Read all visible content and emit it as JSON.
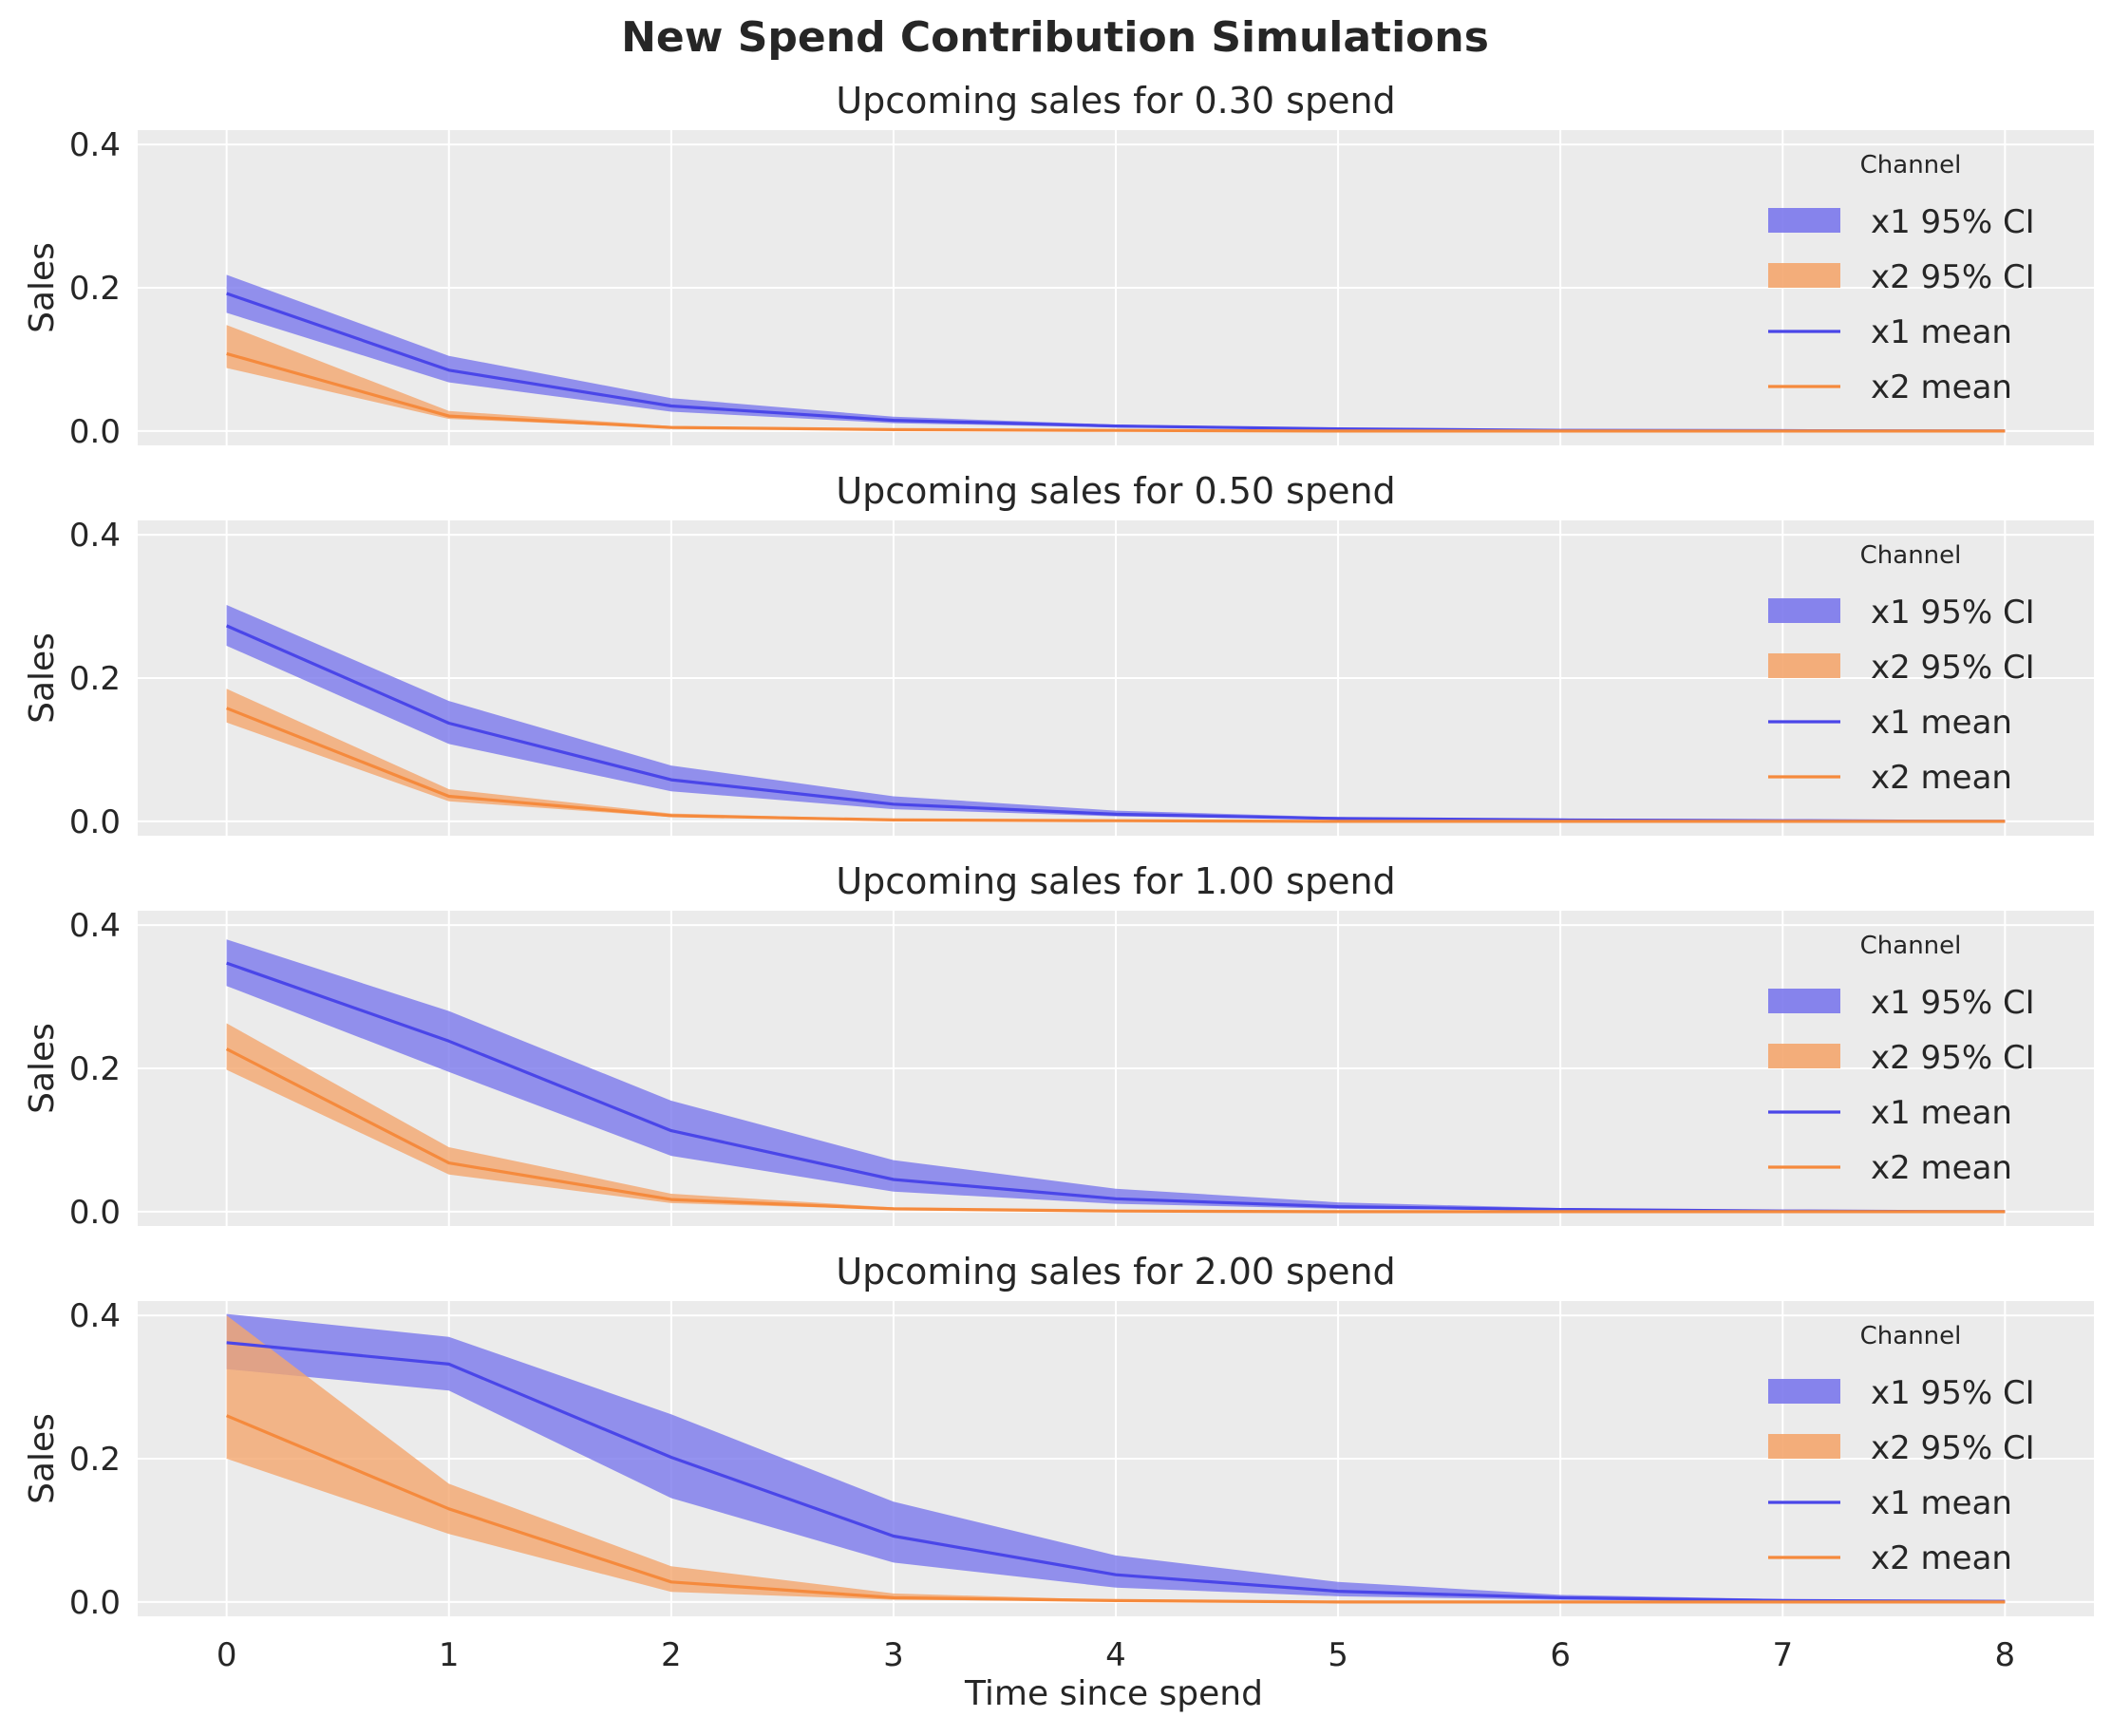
{
  "figure": {
    "title": "New Spend Contribution Simulations",
    "xlabel": "Time since spend"
  },
  "colors": {
    "x1": "#4a46e8",
    "x1_band": "#7b78ec",
    "x2": "#f58a3d",
    "x2_band": "#f4a66e",
    "panel_bg": "#ebebeb",
    "grid": "#ffffff"
  },
  "chart_data": [
    {
      "type": "line",
      "title": "Upcoming sales for 0.30 spend",
      "xlabel": "",
      "ylabel": "Sales",
      "x": [
        0,
        1,
        2,
        3,
        4,
        5,
        6,
        7,
        8
      ],
      "xticks": [
        "0",
        "1",
        "2",
        "3",
        "4",
        "5",
        "6",
        "7",
        "8"
      ],
      "yticks": [
        "0.0",
        "0.2",
        "0.4"
      ],
      "ylim": [
        -0.02,
        0.42
      ],
      "xlim": [
        -0.4,
        8.4
      ],
      "grid": true,
      "legend": {
        "title": "Channel",
        "position": "right",
        "entries": [
          "x1 95% CI",
          "x2 95% CI",
          "x1 mean",
          "x2 mean"
        ]
      },
      "series": [
        {
          "name": "x1 mean",
          "kind": "line",
          "values": [
            0.192,
            0.085,
            0.035,
            0.015,
            0.007,
            0.003,
            0.001,
            0.0005,
            0.0
          ]
        },
        {
          "name": "x1 95% CI",
          "kind": "band",
          "lower": [
            0.165,
            0.068,
            0.027,
            0.011,
            0.005,
            0.002,
            0.001,
            0.0,
            0.0
          ],
          "upper": [
            0.218,
            0.105,
            0.046,
            0.02,
            0.009,
            0.004,
            0.002,
            0.001,
            0.0
          ]
        },
        {
          "name": "x2 mean",
          "kind": "line",
          "values": [
            0.108,
            0.021,
            0.005,
            0.002,
            0.001,
            0.0,
            0.0,
            0.0,
            0.0
          ]
        },
        {
          "name": "x2 95% CI",
          "kind": "band",
          "lower": [
            0.088,
            0.017,
            0.004,
            0.001,
            0.0,
            0.0,
            0.0,
            0.0,
            0.0
          ],
          "upper": [
            0.148,
            0.028,
            0.007,
            0.003,
            0.001,
            0.0,
            0.0,
            0.0,
            0.0
          ]
        }
      ]
    },
    {
      "type": "line",
      "title": "Upcoming sales for 0.50 spend",
      "xlabel": "",
      "ylabel": "Sales",
      "x": [
        0,
        1,
        2,
        3,
        4,
        5,
        6,
        7,
        8
      ],
      "xticks": [
        "0",
        "1",
        "2",
        "3",
        "4",
        "5",
        "6",
        "7",
        "8"
      ],
      "yticks": [
        "0.0",
        "0.2",
        "0.4"
      ],
      "ylim": [
        -0.02,
        0.42
      ],
      "xlim": [
        -0.4,
        8.4
      ],
      "grid": true,
      "legend": {
        "title": "Channel",
        "position": "right",
        "entries": [
          "x1 95% CI",
          "x2 95% CI",
          "x1 mean",
          "x2 mean"
        ]
      },
      "series": [
        {
          "name": "x1 mean",
          "kind": "line",
          "values": [
            0.273,
            0.137,
            0.058,
            0.024,
            0.01,
            0.004,
            0.002,
            0.001,
            0.0
          ]
        },
        {
          "name": "x1 95% CI",
          "kind": "band",
          "lower": [
            0.245,
            0.108,
            0.042,
            0.017,
            0.007,
            0.003,
            0.001,
            0.0,
            0.0
          ],
          "upper": [
            0.302,
            0.168,
            0.078,
            0.035,
            0.015,
            0.006,
            0.002,
            0.001,
            0.0
          ]
        },
        {
          "name": "x2 mean",
          "kind": "line",
          "values": [
            0.158,
            0.035,
            0.008,
            0.002,
            0.001,
            0.0,
            0.0,
            0.0,
            0.0
          ]
        },
        {
          "name": "x2 95% CI",
          "kind": "band",
          "lower": [
            0.138,
            0.028,
            0.006,
            0.001,
            0.0,
            0.0,
            0.0,
            0.0,
            0.0
          ],
          "upper": [
            0.185,
            0.045,
            0.011,
            0.003,
            0.001,
            0.0,
            0.0,
            0.0,
            0.0
          ]
        }
      ]
    },
    {
      "type": "line",
      "title": "Upcoming sales for 1.00 spend",
      "xlabel": "",
      "ylabel": "Sales",
      "x": [
        0,
        1,
        2,
        3,
        4,
        5,
        6,
        7,
        8
      ],
      "xticks": [
        "0",
        "1",
        "2",
        "3",
        "4",
        "5",
        "6",
        "7",
        "8"
      ],
      "yticks": [
        "0.0",
        "0.2",
        "0.4"
      ],
      "ylim": [
        -0.02,
        0.42
      ],
      "xlim": [
        -0.4,
        8.4
      ],
      "grid": true,
      "legend": {
        "title": "Channel",
        "position": "right",
        "entries": [
          "x1 95% CI",
          "x2 95% CI",
          "x1 mean",
          "x2 mean"
        ]
      },
      "series": [
        {
          "name": "x1 mean",
          "kind": "line",
          "values": [
            0.347,
            0.238,
            0.113,
            0.045,
            0.018,
            0.007,
            0.003,
            0.001,
            0.0
          ]
        },
        {
          "name": "x1 95% CI",
          "kind": "band",
          "lower": [
            0.315,
            0.195,
            0.078,
            0.028,
            0.011,
            0.004,
            0.002,
            0.001,
            0.0
          ],
          "upper": [
            0.38,
            0.28,
            0.155,
            0.072,
            0.032,
            0.013,
            0.005,
            0.002,
            0.001
          ]
        },
        {
          "name": "x2 mean",
          "kind": "line",
          "values": [
            0.227,
            0.068,
            0.017,
            0.004,
            0.001,
            0.0,
            0.0,
            0.0,
            0.0
          ]
        },
        {
          "name": "x2 95% CI",
          "kind": "band",
          "lower": [
            0.198,
            0.052,
            0.012,
            0.003,
            0.001,
            0.0,
            0.0,
            0.0,
            0.0
          ],
          "upper": [
            0.263,
            0.09,
            0.025,
            0.006,
            0.002,
            0.0,
            0.0,
            0.0,
            0.0
          ]
        }
      ]
    },
    {
      "type": "line",
      "title": "Upcoming sales for 2.00 spend",
      "xlabel": "Time since spend",
      "ylabel": "Sales",
      "x": [
        0,
        1,
        2,
        3,
        4,
        5,
        6,
        7,
        8
      ],
      "xticks": [
        "0",
        "1",
        "2",
        "3",
        "4",
        "5",
        "6",
        "7",
        "8"
      ],
      "yticks": [
        "0.0",
        "0.2",
        "0.4"
      ],
      "ylim": [
        -0.02,
        0.42
      ],
      "xlim": [
        -0.4,
        8.4
      ],
      "grid": true,
      "legend": {
        "title": "Channel",
        "position": "right",
        "entries": [
          "x1 95% CI",
          "x2 95% CI",
          "x1 mean",
          "x2 mean"
        ]
      },
      "series": [
        {
          "name": "x1 mean",
          "kind": "line",
          "values": [
            0.362,
            0.332,
            0.202,
            0.092,
            0.038,
            0.015,
            0.006,
            0.002,
            0.001
          ]
        },
        {
          "name": "x1 95% CI",
          "kind": "band",
          "lower": [
            0.325,
            0.295,
            0.145,
            0.055,
            0.02,
            0.008,
            0.003,
            0.001,
            0.0
          ],
          "upper": [
            0.402,
            0.37,
            0.262,
            0.14,
            0.065,
            0.028,
            0.01,
            0.004,
            0.001
          ]
        },
        {
          "name": "x2 mean",
          "kind": "line",
          "values": [
            0.26,
            0.13,
            0.028,
            0.006,
            0.002,
            0.0,
            0.0,
            0.0,
            0.0
          ]
        },
        {
          "name": "x2 95% CI",
          "kind": "band",
          "lower": [
            0.2,
            0.095,
            0.014,
            0.003,
            0.001,
            0.0,
            0.0,
            0.0,
            0.0
          ],
          "upper": [
            0.4,
            0.165,
            0.05,
            0.012,
            0.003,
            0.001,
            0.0,
            0.0,
            0.0
          ]
        }
      ]
    }
  ]
}
